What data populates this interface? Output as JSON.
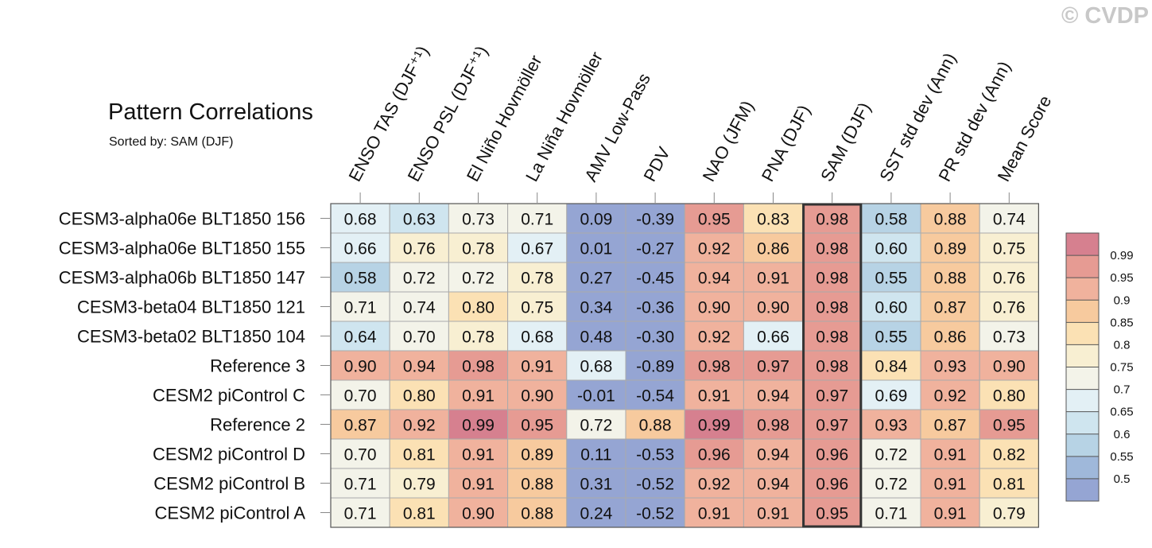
{
  "title": "Pattern Correlations",
  "subtitle": "Sorted by: SAM (DJF)",
  "watermark": "© CVDP",
  "chart_data": {
    "type": "heatmap",
    "columns": [
      "ENSO TAS (DJF⁺¹)",
      "ENSO PSL (DJF⁺¹)",
      "El Niño Hovmöller",
      "La Niña Hovmöller",
      "AMV Low-Pass",
      "PDV",
      "NAO (JFM)",
      "PNA (DJF)",
      "SAM (DJF)",
      "SST std dev (Ann)",
      "PR std dev (Ann)",
      "Mean Score"
    ],
    "rows": [
      "CESM3-alpha06e BLT1850 156",
      "CESM3-alpha06e BLT1850 155",
      "CESM3-alpha06b BLT1850 147",
      "CESM3-beta04 BLT1850 121",
      "CESM3-beta02 BLT1850 104",
      "Reference 3",
      "CESM2 piControl C",
      "Reference 2",
      "CESM2 piControl D",
      "CESM2 piControl B",
      "CESM2 piControl A"
    ],
    "values": [
      [
        "0.68",
        "0.63",
        "0.73",
        "0.71",
        "0.09",
        "-0.39",
        "0.95",
        "0.83",
        "0.98",
        "0.58",
        "0.88",
        "0.74"
      ],
      [
        "0.66",
        "0.76",
        "0.78",
        "0.67",
        "0.01",
        "-0.27",
        "0.92",
        "0.86",
        "0.98",
        "0.60",
        "0.89",
        "0.75"
      ],
      [
        "0.58",
        "0.72",
        "0.72",
        "0.78",
        "0.27",
        "-0.45",
        "0.94",
        "0.91",
        "0.98",
        "0.55",
        "0.88",
        "0.76"
      ],
      [
        "0.71",
        "0.74",
        "0.80",
        "0.75",
        "0.34",
        "-0.36",
        "0.90",
        "0.90",
        "0.98",
        "0.60",
        "0.87",
        "0.76"
      ],
      [
        "0.64",
        "0.70",
        "0.78",
        "0.68",
        "0.48",
        "-0.30",
        "0.92",
        "0.66",
        "0.98",
        "0.55",
        "0.86",
        "0.73"
      ],
      [
        "0.90",
        "0.94",
        "0.98",
        "0.91",
        "0.68",
        "-0.89",
        "0.98",
        "0.97",
        "0.98",
        "0.84",
        "0.93",
        "0.90"
      ],
      [
        "0.70",
        "0.80",
        "0.91",
        "0.90",
        "-0.01",
        "-0.54",
        "0.91",
        "0.94",
        "0.97",
        "0.69",
        "0.92",
        "0.80"
      ],
      [
        "0.87",
        "0.92",
        "0.99",
        "0.95",
        "0.72",
        "0.88",
        "0.99",
        "0.98",
        "0.97",
        "0.93",
        "0.87",
        "0.95"
      ],
      [
        "0.70",
        "0.81",
        "0.91",
        "0.89",
        "0.11",
        "-0.53",
        "0.96",
        "0.94",
        "0.96",
        "0.72",
        "0.91",
        "0.82"
      ],
      [
        "0.71",
        "0.79",
        "0.91",
        "0.88",
        "0.31",
        "-0.52",
        "0.92",
        "0.94",
        "0.96",
        "0.72",
        "0.91",
        "0.81"
      ],
      [
        "0.71",
        "0.81",
        "0.90",
        "0.88",
        "0.24",
        "-0.52",
        "0.91",
        "0.91",
        "0.95",
        "0.71",
        "0.91",
        "0.79"
      ]
    ],
    "highlighted_column": "SAM (DJF)",
    "colorbar": {
      "labels": [
        "0.99",
        "0.95",
        "0.9",
        "0.85",
        "0.8",
        "0.75",
        "0.7",
        "0.65",
        "0.6",
        "0.55",
        "0.5"
      ],
      "colors": [
        "#d6808f",
        "#e69b93",
        "#f0b29d",
        "#f7ca9e",
        "#fbe1b4",
        "#f8efd2",
        "#f3f3e9",
        "#e3f0f5",
        "#cfe5ef",
        "#b7d3e5",
        "#9fb8da",
        "#95a5d3"
      ],
      "placement": "right"
    }
  }
}
